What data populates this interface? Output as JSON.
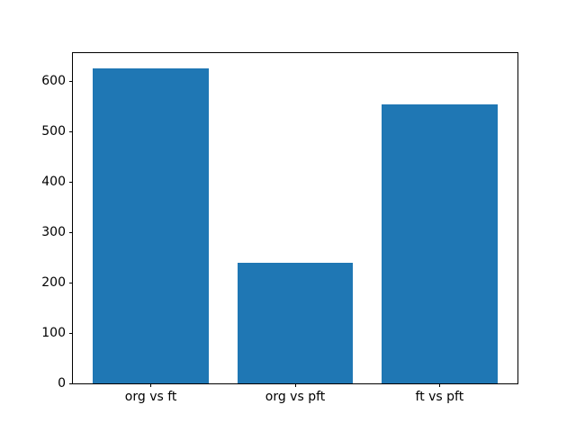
{
  "chart_data": {
    "type": "bar",
    "categories": [
      "org vs ft",
      "org vs pft",
      "ft vs pft"
    ],
    "values": [
      625,
      240,
      555
    ],
    "title": "",
    "xlabel": "",
    "ylabel": "",
    "ylim": [
      0,
      656
    ],
    "xlim": [
      -0.54,
      2.54
    ],
    "yticks": [
      0,
      100,
      200,
      300,
      400,
      500,
      600
    ],
    "bar_width": 0.8,
    "bar_color": "#1f77b4",
    "grid": false,
    "legend": "none",
    "background_color": "#ffffff",
    "spine_color": "#000000"
  }
}
